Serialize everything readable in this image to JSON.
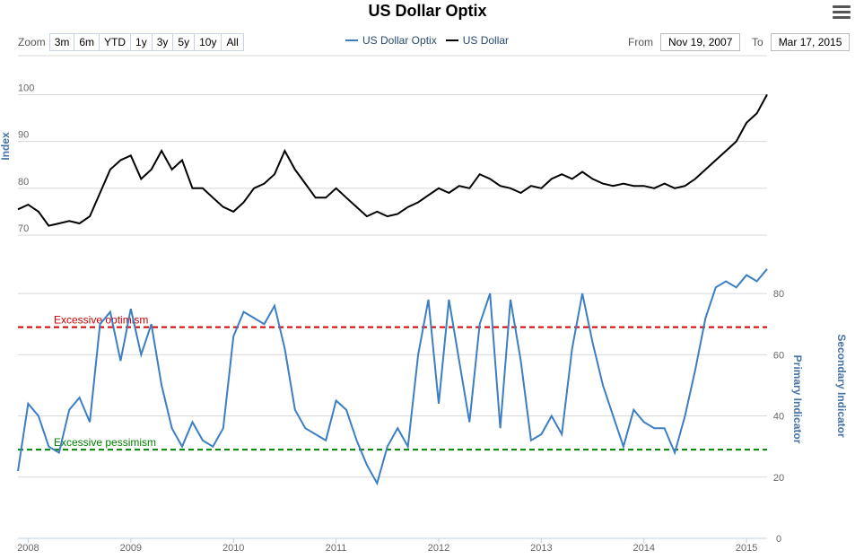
{
  "title": "US Dollar Optix",
  "zoom": {
    "label": "Zoom",
    "buttons": [
      "3m",
      "6m",
      "YTD",
      "1y",
      "3y",
      "5y",
      "10y",
      "All"
    ]
  },
  "legend": [
    {
      "name": "US Dollar Optix",
      "color": "#3c7ec3"
    },
    {
      "name": "US Dollar",
      "color": "#000000"
    }
  ],
  "range": {
    "from_label": "From",
    "from_value": "Nov 19, 2007",
    "to_label": "To",
    "to_value": "Mar 17, 2015"
  },
  "icons": {
    "menu": "hamburger-menu-icon"
  },
  "chart_data": [
    {
      "type": "line",
      "name": "US Dollar",
      "ylabel": "Index",
      "ylim": [
        70,
        102
      ],
      "yticks": [
        70,
        80,
        90,
        100
      ],
      "color": "#000000",
      "x": [
        2007.9,
        2008.0,
        2008.1,
        2008.2,
        2008.3,
        2008.4,
        2008.5,
        2008.6,
        2008.7,
        2008.8,
        2008.9,
        2009.0,
        2009.1,
        2009.2,
        2009.3,
        2009.4,
        2009.5,
        2009.6,
        2009.7,
        2009.8,
        2009.9,
        2010.0,
        2010.1,
        2010.2,
        2010.3,
        2010.4,
        2010.5,
        2010.6,
        2010.7,
        2010.8,
        2010.9,
        2011.0,
        2011.1,
        2011.2,
        2011.3,
        2011.4,
        2011.5,
        2011.6,
        2011.7,
        2011.8,
        2011.9,
        2012.0,
        2012.1,
        2012.2,
        2012.3,
        2012.4,
        2012.5,
        2012.6,
        2012.7,
        2012.8,
        2012.9,
        2013.0,
        2013.1,
        2013.2,
        2013.3,
        2013.4,
        2013.5,
        2013.6,
        2013.7,
        2013.8,
        2013.9,
        2014.0,
        2014.1,
        2014.2,
        2014.3,
        2014.4,
        2014.5,
        2014.6,
        2014.7,
        2014.8,
        2014.9,
        2015.0,
        2015.1,
        2015.2
      ],
      "values": [
        75.5,
        76.5,
        75,
        72,
        72.5,
        73,
        72.5,
        74,
        79,
        84,
        86,
        87,
        82,
        84,
        88,
        84,
        86,
        80,
        80,
        78,
        76,
        75,
        77,
        80,
        81,
        83,
        88,
        84,
        81,
        78,
        78,
        80,
        78,
        76,
        74,
        75,
        74,
        74.5,
        76,
        77,
        78.5,
        80,
        79,
        80.5,
        80,
        83,
        82,
        80.5,
        80,
        79,
        80.5,
        80,
        82,
        83,
        82,
        83.5,
        82,
        81,
        80.5,
        81,
        80.5,
        80.5,
        80,
        81,
        80,
        80.5,
        82,
        84,
        86,
        88,
        90,
        94,
        96,
        100
      ]
    },
    {
      "type": "line",
      "name": "US Dollar Optix",
      "ylabel": "Primary Indicator",
      "ylabel2": "Secondary Indicator",
      "ylim": [
        0,
        90
      ],
      "yticks": [
        0,
        20,
        40,
        60,
        80
      ],
      "color": "#3c7ec3",
      "x": [
        2007.9,
        2008.0,
        2008.1,
        2008.2,
        2008.3,
        2008.4,
        2008.5,
        2008.6,
        2008.7,
        2008.8,
        2008.9,
        2009.0,
        2009.1,
        2009.2,
        2009.3,
        2009.4,
        2009.5,
        2009.6,
        2009.7,
        2009.8,
        2009.9,
        2010.0,
        2010.1,
        2010.2,
        2010.3,
        2010.4,
        2010.5,
        2010.6,
        2010.7,
        2010.8,
        2010.9,
        2011.0,
        2011.1,
        2011.2,
        2011.3,
        2011.4,
        2011.5,
        2011.6,
        2011.7,
        2011.8,
        2011.9,
        2012.0,
        2012.1,
        2012.2,
        2012.3,
        2012.4,
        2012.5,
        2012.6,
        2012.7,
        2012.8,
        2012.9,
        2013.0,
        2013.1,
        2013.2,
        2013.3,
        2013.4,
        2013.5,
        2013.6,
        2013.7,
        2013.8,
        2013.9,
        2014.0,
        2014.1,
        2014.2,
        2014.3,
        2014.4,
        2014.5,
        2014.6,
        2014.7,
        2014.8,
        2014.9,
        2015.0,
        2015.1,
        2015.2
      ],
      "values": [
        22,
        44,
        40,
        30,
        28,
        42,
        46,
        38,
        70,
        74,
        58,
        75,
        60,
        70,
        50,
        36,
        30,
        38,
        32,
        30,
        36,
        66,
        74,
        72,
        70,
        76,
        62,
        42,
        36,
        34,
        32,
        45,
        42,
        32,
        24,
        18,
        30,
        36,
        30,
        60,
        78,
        44,
        78,
        58,
        38,
        70,
        80,
        36,
        78,
        58,
        32,
        34,
        40,
        34,
        62,
        80,
        64,
        50,
        40,
        30,
        42,
        38,
        36,
        36,
        28,
        40,
        55,
        72,
        82,
        84,
        82,
        86,
        84,
        88
      ]
    }
  ],
  "annotations": [
    {
      "label": "Excessive optimism",
      "value": 69,
      "color": "#cc0000"
    },
    {
      "label": "Excessive pessimism",
      "value": 29,
      "color": "#008000"
    }
  ],
  "xaxis": {
    "ticks": [
      "2008",
      "2009",
      "2010",
      "2011",
      "2012",
      "2013",
      "2014",
      "2015"
    ],
    "tick_values": [
      2008,
      2009,
      2010,
      2011,
      2012,
      2013,
      2014,
      2015
    ]
  }
}
